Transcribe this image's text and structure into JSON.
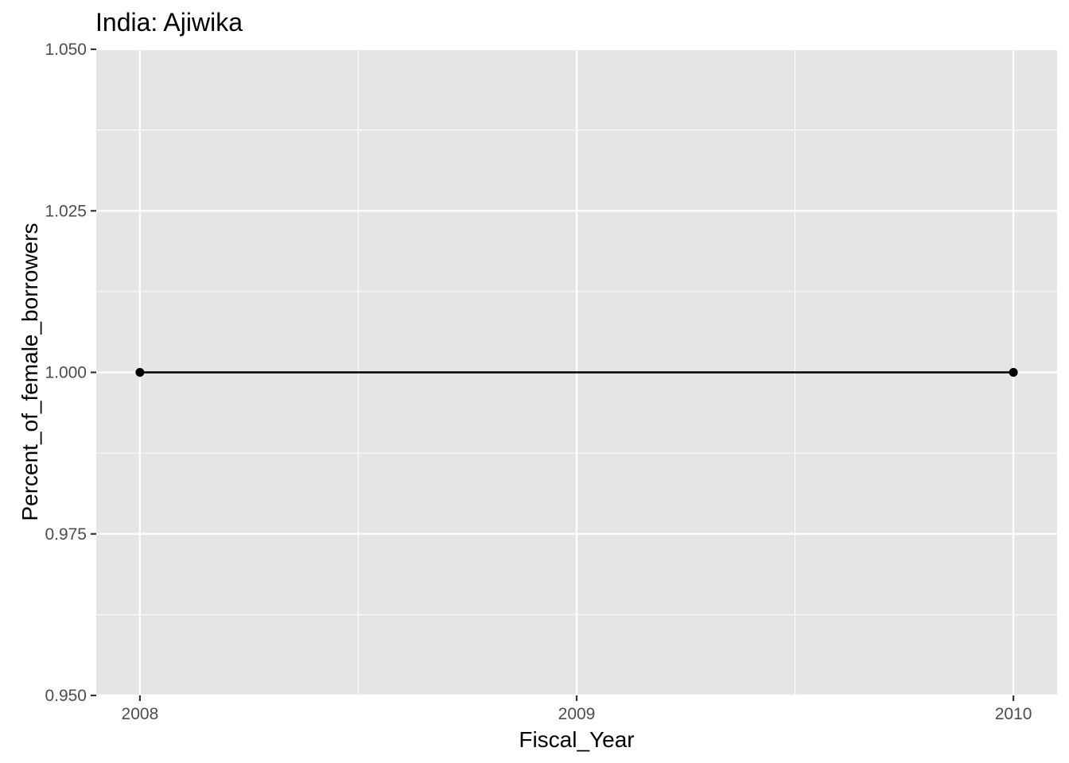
{
  "chart_data": {
    "type": "line",
    "title": "India:  Ajiwika",
    "xlabel": "Fiscal_Year",
    "ylabel": "Percent_of_female_borrowers",
    "x": [
      2008,
      2010
    ],
    "series": [
      {
        "values": [
          1.0,
          1.0
        ]
      }
    ],
    "xlim": [
      2007.9,
      2010.1
    ],
    "ylim": [
      0.95,
      1.05
    ],
    "x_ticks": [
      2008,
      2009,
      2010
    ],
    "x_tick_labels": [
      "2008",
      "2009",
      "2010"
    ],
    "y_ticks": [
      0.95,
      0.975,
      1.0,
      1.025,
      1.05
    ],
    "y_tick_labels": [
      "0.950",
      "0.975",
      "1.000",
      "1.025",
      "1.050"
    ],
    "grid": true,
    "legend": "none",
    "colors": {
      "panel_background": "#e5e5e5",
      "grid_line": "#ffffff",
      "series_line": "#000000",
      "tick_label": "#4d4d4d",
      "tick_mark": "#333333"
    }
  }
}
